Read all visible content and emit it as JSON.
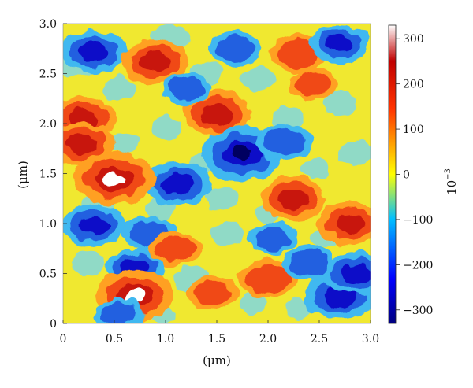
{
  "chart_data": {
    "type": "heatmap",
    "x_axis": {
      "label": "(μm)",
      "range": [
        0,
        3.0
      ],
      "ticks": [
        "0",
        "0.5",
        "1.0",
        "1.5",
        "2.0",
        "2.5",
        "3.0"
      ],
      "tick_values": [
        0,
        0.5,
        1.0,
        1.5,
        2.0,
        2.5,
        3.0
      ]
    },
    "y_axis": {
      "label": "(μm)",
      "range": [
        0,
        3.0
      ],
      "ticks": [
        "0",
        "0.5",
        "1.0",
        "1.5",
        "2.0",
        "2.5",
        "3.0"
      ],
      "tick_values": [
        0,
        0.5,
        1.0,
        1.5,
        2.0,
        2.5,
        3.0
      ]
    },
    "colorbar": {
      "label": "10",
      "label_exponent": "−3",
      "range": [
        -330,
        330
      ],
      "ticks": [
        "300",
        "200",
        "100",
        "0",
        "−100",
        "−200",
        "−300"
      ],
      "tick_values": [
        300,
        200,
        100,
        0,
        -100,
        -200,
        -300
      ],
      "colormap": [
        "#00007f",
        "#0000ff",
        "#00bfff",
        "#ffff00",
        "#ff3300",
        "#c00000",
        "#ffffff"
      ]
    },
    "features": [
      {
        "x": 0.3,
        "y": 2.72,
        "value": -230
      },
      {
        "x": 0.9,
        "y": 2.62,
        "value": 230
      },
      {
        "x": 1.68,
        "y": 2.75,
        "value": -150
      },
      {
        "x": 2.3,
        "y": 2.7,
        "value": 180
      },
      {
        "x": 2.7,
        "y": 2.8,
        "value": -180
      },
      {
        "x": 1.5,
        "y": 2.1,
        "value": 240
      },
      {
        "x": 0.2,
        "y": 2.05,
        "value": 230
      },
      {
        "x": 0.18,
        "y": 1.8,
        "value": 230
      },
      {
        "x": 1.75,
        "y": 1.7,
        "value": -330
      },
      {
        "x": 2.15,
        "y": 1.82,
        "value": -170
      },
      {
        "x": 1.12,
        "y": 1.4,
        "value": -250
      },
      {
        "x": 0.5,
        "y": 1.45,
        "value": 320
      },
      {
        "x": 2.25,
        "y": 1.25,
        "value": 230
      },
      {
        "x": 2.8,
        "y": 1.0,
        "value": 220
      },
      {
        "x": 0.3,
        "y": 0.98,
        "value": -220
      },
      {
        "x": 0.85,
        "y": 0.9,
        "value": -160
      },
      {
        "x": 0.7,
        "y": 0.55,
        "value": -190
      },
      {
        "x": 0.7,
        "y": 0.28,
        "value": 300
      },
      {
        "x": 2.0,
        "y": 0.45,
        "value": 190
      },
      {
        "x": 2.7,
        "y": 0.28,
        "value": -260
      },
      {
        "x": 2.85,
        "y": 0.5,
        "value": -220
      },
      {
        "x": 2.05,
        "y": 0.85,
        "value": -120
      },
      {
        "x": 1.1,
        "y": 0.75,
        "value": 150
      },
      {
        "x": 1.45,
        "y": 0.3,
        "value": 140
      },
      {
        "x": 2.4,
        "y": 0.6,
        "value": -150
      },
      {
        "x": 1.2,
        "y": 2.35,
        "value": -120
      },
      {
        "x": 2.45,
        "y": 2.4,
        "value": 120
      },
      {
        "x": 0.55,
        "y": 0.1,
        "value": -120
      }
    ]
  }
}
